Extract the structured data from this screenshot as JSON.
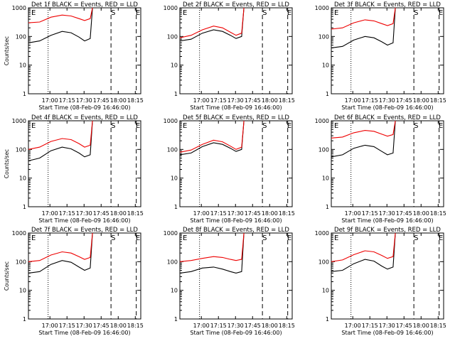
{
  "colors": {
    "events": "#000000",
    "lld": "#ee0000",
    "axes": "#000000"
  },
  "chart_data": [
    {
      "type": "line",
      "title": "Det 1f BLACK = Events, RED = LLD",
      "ylabel": "Counts/sec",
      "xlabel": "Start Time (08-Feb-09 16:46:00)",
      "x_tick_labels": [
        "17:00",
        "17:15",
        "17:30",
        "17:45",
        "18:00",
        "18:15"
      ],
      "y_tick_labels": [
        "1",
        "10",
        "100",
        "1000"
      ],
      "yscale": "log",
      "ylim": [
        1,
        1000
      ],
      "markers": [
        "E",
        "S",
        "E"
      ],
      "series": [
        {
          "name": "Events",
          "color": "#000000",
          "points": [
            [
              0,
              60
            ],
            [
              0.1,
              70
            ],
            [
              0.2,
              110
            ],
            [
              0.3,
              150
            ],
            [
              0.38,
              135
            ],
            [
              0.45,
              95
            ],
            [
              0.5,
              70
            ],
            [
              0.55,
              85
            ],
            [
              0.57,
              1000
            ]
          ]
        },
        {
          "name": "LLD",
          "color": "#ee0000",
          "points": [
            [
              0,
              300
            ],
            [
              0.1,
              320
            ],
            [
              0.2,
              470
            ],
            [
              0.3,
              560
            ],
            [
              0.38,
              520
            ],
            [
              0.45,
              420
            ],
            [
              0.5,
              360
            ],
            [
              0.55,
              420
            ],
            [
              0.57,
              1000
            ]
          ]
        }
      ]
    },
    {
      "type": "line",
      "title": "Det 2f BLACK = Events, RED = LLD",
      "ylabel": "",
      "xlabel": "Start Time (08-Feb-09 16:46:00)",
      "x_tick_labels": [
        "17:00",
        "17:15",
        "17:30",
        "17:45",
        "18:00",
        "18:15"
      ],
      "y_tick_labels": [
        "1",
        "10",
        "100",
        "1000"
      ],
      "yscale": "log",
      "ylim": [
        1,
        1000
      ],
      "markers": [
        "E",
        "S",
        "E"
      ],
      "series": [
        {
          "name": "Events",
          "color": "#000000",
          "points": [
            [
              0,
              70
            ],
            [
              0.1,
              80
            ],
            [
              0.2,
              130
            ],
            [
              0.3,
              170
            ],
            [
              0.38,
              150
            ],
            [
              0.45,
              110
            ],
            [
              0.5,
              85
            ],
            [
              0.55,
              100
            ],
            [
              0.57,
              1000
            ]
          ]
        },
        {
          "name": "LLD",
          "color": "#ee0000",
          "points": [
            [
              0,
              90
            ],
            [
              0.1,
              110
            ],
            [
              0.2,
              170
            ],
            [
              0.3,
              230
            ],
            [
              0.38,
              200
            ],
            [
              0.45,
              140
            ],
            [
              0.5,
              110
            ],
            [
              0.55,
              130
            ],
            [
              0.57,
              1000
            ]
          ]
        }
      ]
    },
    {
      "type": "line",
      "title": "Det 3f BLACK = Events, RED = LLD",
      "ylabel": "",
      "xlabel": "Start Time (08-Feb-09 16:46:00)",
      "x_tick_labels": [
        "17:00",
        "17:15",
        "17:30",
        "17:45",
        "18:00",
        "18:15"
      ],
      "y_tick_labels": [
        "1",
        "10",
        "100",
        "1000"
      ],
      "yscale": "log",
      "ylim": [
        1,
        1000
      ],
      "markers": [
        "E",
        "S",
        "E"
      ],
      "series": [
        {
          "name": "Events",
          "color": "#000000",
          "points": [
            [
              0,
              40
            ],
            [
              0.1,
              45
            ],
            [
              0.2,
              75
            ],
            [
              0.3,
              100
            ],
            [
              0.38,
              90
            ],
            [
              0.45,
              65
            ],
            [
              0.5,
              50
            ],
            [
              0.55,
              60
            ],
            [
              0.57,
              1000
            ]
          ]
        },
        {
          "name": "LLD",
          "color": "#ee0000",
          "points": [
            [
              0,
              180
            ],
            [
              0.1,
              200
            ],
            [
              0.2,
              300
            ],
            [
              0.3,
              380
            ],
            [
              0.38,
              350
            ],
            [
              0.45,
              280
            ],
            [
              0.5,
              240
            ],
            [
              0.55,
              280
            ],
            [
              0.57,
              1000
            ]
          ]
        }
      ]
    },
    {
      "type": "line",
      "title": "Det 4f BLACK = Events, RED = LLD",
      "ylabel": "Counts/sec",
      "xlabel": "Start Time (08-Feb-09 16:46:00)",
      "x_tick_labels": [
        "17:00",
        "17:15",
        "17:30",
        "17:45",
        "18:00",
        "18:15"
      ],
      "y_tick_labels": [
        "1",
        "10",
        "100",
        "1000"
      ],
      "yscale": "log",
      "ylim": [
        1,
        1000
      ],
      "markers": [
        "E",
        "S",
        "E"
      ],
      "series": [
        {
          "name": "Events",
          "color": "#000000",
          "points": [
            [
              0,
              40
            ],
            [
              0.1,
              50
            ],
            [
              0.2,
              90
            ],
            [
              0.3,
              120
            ],
            [
              0.38,
              105
            ],
            [
              0.45,
              75
            ],
            [
              0.5,
              55
            ],
            [
              0.55,
              65
            ],
            [
              0.57,
              1000
            ]
          ]
        },
        {
          "name": "LLD",
          "color": "#ee0000",
          "points": [
            [
              0,
              100
            ],
            [
              0.1,
              120
            ],
            [
              0.2,
              190
            ],
            [
              0.3,
              240
            ],
            [
              0.38,
              220
            ],
            [
              0.45,
              160
            ],
            [
              0.5,
              120
            ],
            [
              0.55,
              140
            ],
            [
              0.57,
              1000
            ]
          ]
        }
      ]
    },
    {
      "type": "line",
      "title": "Det 5f BLACK = Events, RED = LLD",
      "ylabel": "",
      "xlabel": "Start Time (08-Feb-09 16:46:00)",
      "x_tick_labels": [
        "17:00",
        "17:15",
        "17:30",
        "17:45",
        "18:00",
        "18:15"
      ],
      "y_tick_labels": [
        "1",
        "10",
        "100",
        "1000"
      ],
      "yscale": "log",
      "ylim": [
        1,
        1000
      ],
      "markers": [
        "E",
        "S",
        "E"
      ],
      "series": [
        {
          "name": "Events",
          "color": "#000000",
          "points": [
            [
              0,
              65
            ],
            [
              0.1,
              75
            ],
            [
              0.2,
              125
            ],
            [
              0.3,
              170
            ],
            [
              0.38,
              150
            ],
            [
              0.45,
              110
            ],
            [
              0.5,
              85
            ],
            [
              0.55,
              100
            ],
            [
              0.57,
              1000
            ]
          ]
        },
        {
          "name": "LLD",
          "color": "#ee0000",
          "points": [
            [
              0,
              80
            ],
            [
              0.1,
              95
            ],
            [
              0.2,
              150
            ],
            [
              0.3,
              210
            ],
            [
              0.38,
              185
            ],
            [
              0.45,
              130
            ],
            [
              0.5,
              100
            ],
            [
              0.55,
              120
            ],
            [
              0.57,
              1000
            ]
          ]
        }
      ]
    },
    {
      "type": "line",
      "title": "Det 6f BLACK = Events, RED = LLD",
      "ylabel": "",
      "xlabel": "Start Time (08-Feb-09 16:46:00)",
      "x_tick_labels": [
        "17:00",
        "17:15",
        "17:30",
        "17:45",
        "18:00",
        "18:15"
      ],
      "y_tick_labels": [
        "1",
        "10",
        "100",
        "1000"
      ],
      "yscale": "log",
      "ylim": [
        1,
        1000
      ],
      "markers": [
        "E",
        "S",
        "E"
      ],
      "series": [
        {
          "name": "Events",
          "color": "#000000",
          "points": [
            [
              0,
              55
            ],
            [
              0.1,
              65
            ],
            [
              0.2,
              110
            ],
            [
              0.3,
              140
            ],
            [
              0.38,
              125
            ],
            [
              0.45,
              85
            ],
            [
              0.5,
              65
            ],
            [
              0.55,
              75
            ],
            [
              0.57,
              1000
            ]
          ]
        },
        {
          "name": "LLD",
          "color": "#ee0000",
          "points": [
            [
              0,
              250
            ],
            [
              0.1,
              270
            ],
            [
              0.2,
              380
            ],
            [
              0.3,
              460
            ],
            [
              0.38,
              430
            ],
            [
              0.45,
              340
            ],
            [
              0.5,
              290
            ],
            [
              0.55,
              330
            ],
            [
              0.57,
              1000
            ]
          ]
        }
      ]
    },
    {
      "type": "line",
      "title": "Det 7f BLACK = Events, RED = LLD",
      "ylabel": "Counts/sec",
      "xlabel": "Start Time (08-Feb-09 16:46:00)",
      "x_tick_labels": [
        "17:00",
        "17:15",
        "17:30",
        "17:45",
        "18:00",
        "18:15"
      ],
      "y_tick_labels": [
        "1",
        "10",
        "100",
        "1000"
      ],
      "yscale": "log",
      "ylim": [
        1,
        1000
      ],
      "markers": [
        "E",
        "S",
        "E"
      ],
      "series": [
        {
          "name": "Events",
          "color": "#000000",
          "points": [
            [
              0,
              40
            ],
            [
              0.1,
              45
            ],
            [
              0.2,
              80
            ],
            [
              0.3,
              110
            ],
            [
              0.38,
              95
            ],
            [
              0.45,
              65
            ],
            [
              0.5,
              50
            ],
            [
              0.55,
              60
            ],
            [
              0.57,
              1000
            ]
          ]
        },
        {
          "name": "LLD",
          "color": "#ee0000",
          "points": [
            [
              0,
              100
            ],
            [
              0.1,
              110
            ],
            [
              0.2,
              170
            ],
            [
              0.3,
              220
            ],
            [
              0.38,
              200
            ],
            [
              0.45,
              150
            ],
            [
              0.5,
              120
            ],
            [
              0.55,
              140
            ],
            [
              0.57,
              1000
            ]
          ]
        }
      ]
    },
    {
      "type": "line",
      "title": "Det 8f BLACK = Events, RED = LLD",
      "ylabel": "",
      "xlabel": "Start Time (08-Feb-09 16:46:00)",
      "x_tick_labels": [
        "17:00",
        "17:15",
        "17:30",
        "17:45",
        "18:00",
        "18:15"
      ],
      "y_tick_labels": [
        "1",
        "10",
        "100",
        "1000"
      ],
      "yscale": "log",
      "ylim": [
        1,
        1000
      ],
      "markers": [
        "E",
        "S",
        "E"
      ],
      "series": [
        {
          "name": "Events",
          "color": "#000000",
          "points": [
            [
              0,
              40
            ],
            [
              0.1,
              45
            ],
            [
              0.2,
              60
            ],
            [
              0.3,
              65
            ],
            [
              0.38,
              55
            ],
            [
              0.45,
              45
            ],
            [
              0.5,
              40
            ],
            [
              0.55,
              45
            ],
            [
              0.57,
              1000
            ]
          ]
        },
        {
          "name": "LLD",
          "color": "#ee0000",
          "points": [
            [
              0,
              100
            ],
            [
              0.1,
              110
            ],
            [
              0.2,
              130
            ],
            [
              0.3,
              150
            ],
            [
              0.38,
              140
            ],
            [
              0.45,
              120
            ],
            [
              0.5,
              110
            ],
            [
              0.55,
              120
            ],
            [
              0.57,
              1000
            ]
          ]
        }
      ]
    },
    {
      "type": "line",
      "title": "Det 9f BLACK = Events, RED = LLD",
      "ylabel": "",
      "xlabel": "Start Time (08-Feb-09 16:46:00)",
      "x_tick_labels": [
        "17:00",
        "17:15",
        "17:30",
        "17:45",
        "18:00",
        "18:15"
      ],
      "y_tick_labels": [
        "1",
        "10",
        "100",
        "1000"
      ],
      "yscale": "log",
      "ylim": [
        1,
        1000
      ],
      "markers": [
        "E",
        "S",
        "E"
      ],
      "series": [
        {
          "name": "Events",
          "color": "#000000",
          "points": [
            [
              0,
              45
            ],
            [
              0.1,
              50
            ],
            [
              0.2,
              85
            ],
            [
              0.3,
              120
            ],
            [
              0.38,
              105
            ],
            [
              0.45,
              70
            ],
            [
              0.5,
              55
            ],
            [
              0.55,
              65
            ],
            [
              0.57,
              1000
            ]
          ]
        },
        {
          "name": "LLD",
          "color": "#ee0000",
          "points": [
            [
              0,
              100
            ],
            [
              0.1,
              115
            ],
            [
              0.2,
              175
            ],
            [
              0.3,
              240
            ],
            [
              0.38,
              220
            ],
            [
              0.45,
              165
            ],
            [
              0.5,
              130
            ],
            [
              0.55,
              150
            ],
            [
              0.57,
              1000
            ]
          ]
        }
      ]
    }
  ]
}
